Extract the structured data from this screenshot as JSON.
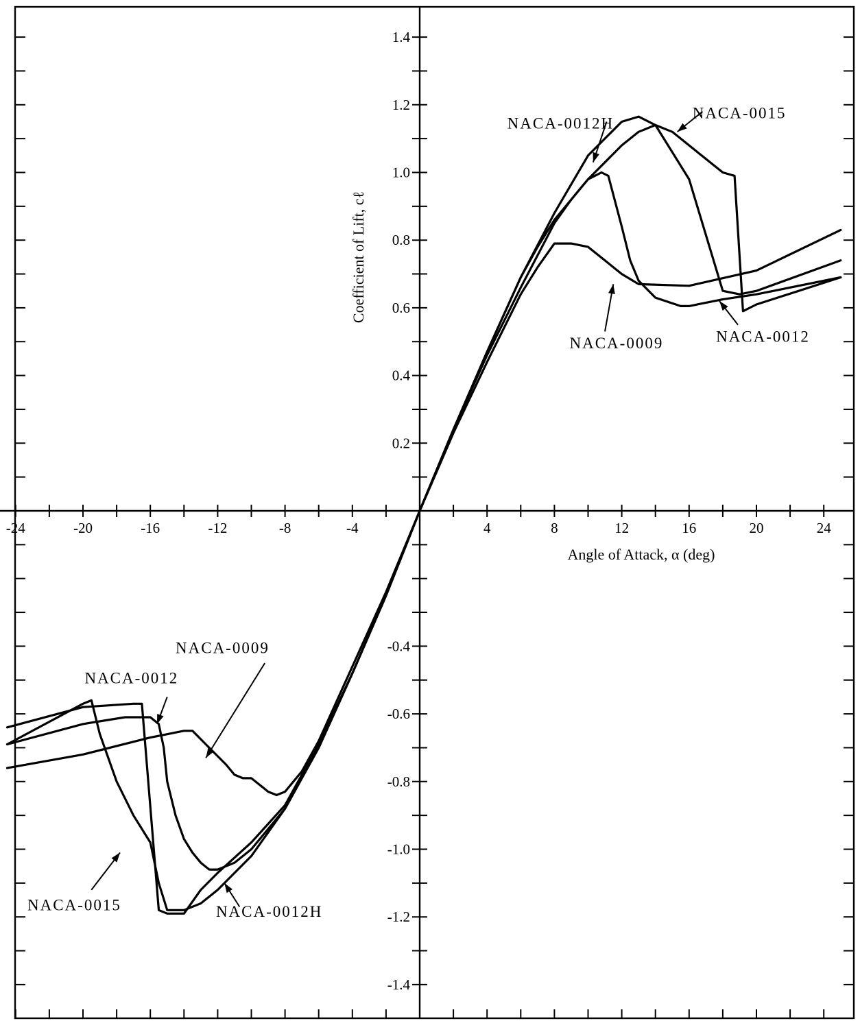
{
  "chart_data": {
    "type": "line",
    "xlabel": "Angle of Attack, α (deg)",
    "ylabel": "Coefficient of Lift, cℓ",
    "xlim": [
      -25,
      25.5
    ],
    "ylim": [
      -1.5,
      1.5
    ],
    "grid": false,
    "x_tick_labels": [
      "-24",
      "-20",
      "-16",
      "-12",
      "-8",
      "-4",
      "4",
      "8",
      "12",
      "16",
      "20",
      "24"
    ],
    "x_tick_values": [
      -24,
      -20,
      -16,
      -12,
      -8,
      -4,
      4,
      8,
      12,
      16,
      20,
      24
    ],
    "y_tick_labels": [
      "1.4",
      "1.2",
      "1.0",
      "0.8",
      "0.6",
      "0.4",
      "0.2",
      "-0.4",
      "-0.6",
      "-0.8",
      "-1.0",
      "-1.2",
      "-1.4"
    ],
    "y_tick_values": [
      1.4,
      1.2,
      1.0,
      0.8,
      0.6,
      0.4,
      0.2,
      -0.4,
      -0.6,
      -0.8,
      -1.0,
      -1.2,
      -1.4
    ],
    "series": [
      {
        "name": "NACA-0009",
        "points": [
          [
            -24.5,
            -0.76
          ],
          [
            -20,
            -0.72
          ],
          [
            -16,
            -0.67
          ],
          [
            -14,
            -0.65
          ],
          [
            -13.5,
            -0.65
          ],
          [
            -12.5,
            -0.7
          ],
          [
            -11.5,
            -0.75
          ],
          [
            -11,
            -0.78
          ],
          [
            -10.5,
            -0.79
          ],
          [
            -10,
            -0.79
          ],
          [
            -9.5,
            -0.81
          ],
          [
            -9,
            -0.83
          ],
          [
            -8.5,
            -0.84
          ],
          [
            -8,
            -0.83
          ],
          [
            -7,
            -0.77
          ],
          [
            -6,
            -0.68
          ],
          [
            -4,
            -0.46
          ],
          [
            -2,
            -0.24
          ],
          [
            0,
            0
          ],
          [
            2,
            0.23
          ],
          [
            4,
            0.44
          ],
          [
            6,
            0.64
          ],
          [
            7,
            0.72
          ],
          [
            8,
            0.79
          ],
          [
            9,
            0.79
          ],
          [
            10,
            0.78
          ],
          [
            11,
            0.74
          ],
          [
            12,
            0.7
          ],
          [
            13,
            0.67
          ],
          [
            16,
            0.665
          ],
          [
            20,
            0.71
          ],
          [
            25,
            0.83
          ]
        ]
      },
      {
        "name": "NACA-0012",
        "points": [
          [
            -24.5,
            -0.69
          ],
          [
            -20,
            -0.63
          ],
          [
            -17.5,
            -0.61
          ],
          [
            -16,
            -0.61
          ],
          [
            -15.5,
            -0.63
          ],
          [
            -15.2,
            -0.7
          ],
          [
            -15,
            -0.8
          ],
          [
            -14.5,
            -0.9
          ],
          [
            -14,
            -0.97
          ],
          [
            -13.5,
            -1.01
          ],
          [
            -13,
            -1.04
          ],
          [
            -12.5,
            -1.06
          ],
          [
            -12,
            -1.06
          ],
          [
            -11,
            -1.04
          ],
          [
            -10,
            -1.0
          ],
          [
            -8,
            -0.88
          ],
          [
            -6,
            -0.7
          ],
          [
            -4,
            -0.48
          ],
          [
            -2,
            -0.25
          ],
          [
            0,
            0
          ],
          [
            2,
            0.24
          ],
          [
            4,
            0.46
          ],
          [
            6,
            0.66
          ],
          [
            8,
            0.85
          ],
          [
            9,
            0.92
          ],
          [
            10,
            0.98
          ],
          [
            10.8,
            1.0
          ],
          [
            11.2,
            0.99
          ],
          [
            12,
            0.84
          ],
          [
            12.5,
            0.74
          ],
          [
            13,
            0.68
          ],
          [
            14,
            0.63
          ],
          [
            15.5,
            0.605
          ],
          [
            16,
            0.605
          ],
          [
            18,
            0.625
          ],
          [
            20,
            0.64
          ],
          [
            25,
            0.69
          ]
        ]
      },
      {
        "name": "NACA-0012H",
        "points": [
          [
            -24.5,
            -0.69
          ],
          [
            -20,
            -0.57
          ],
          [
            -19.5,
            -0.56
          ],
          [
            -19,
            -0.66
          ],
          [
            -18,
            -0.8
          ],
          [
            -17,
            -0.9
          ],
          [
            -16,
            -0.98
          ],
          [
            -15.5,
            -1.1
          ],
          [
            -15,
            -1.18
          ],
          [
            -14,
            -1.18
          ],
          [
            -13,
            -1.16
          ],
          [
            -12,
            -1.12
          ],
          [
            -10,
            -1.02
          ],
          [
            -8,
            -0.88
          ],
          [
            -6,
            -0.7
          ],
          [
            -4,
            -0.48
          ],
          [
            -2,
            -0.25
          ],
          [
            0,
            0
          ],
          [
            2,
            0.24
          ],
          [
            4,
            0.47
          ],
          [
            6,
            0.69
          ],
          [
            8,
            0.88
          ],
          [
            10,
            1.05
          ],
          [
            12,
            1.15
          ],
          [
            13,
            1.165
          ],
          [
            14,
            1.14
          ],
          [
            16,
            0.98
          ],
          [
            18,
            0.65
          ],
          [
            19,
            0.64
          ],
          [
            20,
            0.65
          ],
          [
            25,
            0.74
          ]
        ]
      },
      {
        "name": "NACA-0015",
        "points": [
          [
            -24.5,
            -0.64
          ],
          [
            -20,
            -0.58
          ],
          [
            -17,
            -0.57
          ],
          [
            -16.5,
            -0.57
          ],
          [
            -15.5,
            -1.18
          ],
          [
            -15,
            -1.19
          ],
          [
            -14,
            -1.19
          ],
          [
            -13,
            -1.12
          ],
          [
            -12,
            -1.07
          ],
          [
            -10,
            -0.98
          ],
          [
            -8,
            -0.87
          ],
          [
            -6,
            -0.69
          ],
          [
            -4,
            -0.48
          ],
          [
            -2,
            -0.25
          ],
          [
            0,
            0
          ],
          [
            2,
            0.24
          ],
          [
            4,
            0.47
          ],
          [
            6,
            0.69
          ],
          [
            7,
            0.78
          ],
          [
            8,
            0.86
          ],
          [
            10,
            0.98
          ],
          [
            12,
            1.08
          ],
          [
            13,
            1.12
          ],
          [
            14,
            1.14
          ],
          [
            15,
            1.12
          ],
          [
            16,
            1.08
          ],
          [
            18,
            1.0
          ],
          [
            18.7,
            0.99
          ],
          [
            19.2,
            0.59
          ],
          [
            20,
            0.61
          ],
          [
            25,
            0.69
          ]
        ]
      }
    ],
    "annotations": [
      {
        "text": "NACA-0012H",
        "x": 5.2,
        "y": 1.13,
        "ax": 10.3,
        "ay": 1.03,
        "tx": 11.1,
        "ty": 1.15
      },
      {
        "text": "NACA-0015",
        "x": 16.2,
        "y": 1.16,
        "ax": 15.3,
        "ay": 1.12,
        "tx": 16.8,
        "ty": 1.18
      },
      {
        "text": "NACA-0009",
        "x": 8.9,
        "y": 0.48,
        "ax": 11.5,
        "ay": 0.67,
        "tx": 11.0,
        "ty": 0.53
      },
      {
        "text": "NACA-0012",
        "x": 17.6,
        "y": 0.5,
        "ax": 17.8,
        "ay": 0.62,
        "tx": 18.9,
        "ty": 0.55
      },
      {
        "text": "NACA-0009",
        "x": -14.5,
        "y": -0.42,
        "ax": -12.7,
        "ay": -0.73,
        "tx": -9.2,
        "ty": -0.45
      },
      {
        "text": "NACA-0012",
        "x": -19.9,
        "y": -0.51,
        "ax": -15.6,
        "ay": -0.63,
        "tx": -15.0,
        "ty": -0.55
      },
      {
        "text": "NACA-0015",
        "x": -23.3,
        "y": -1.18,
        "ax": -17.8,
        "ay": -1.01,
        "tx": -19.5,
        "ty": -1.12
      },
      {
        "text": "NACA-0012H",
        "x": -12.1,
        "y": -1.2,
        "ax": -11.6,
        "ay": -1.1,
        "tx": -10.7,
        "ty": -1.17
      }
    ]
  }
}
